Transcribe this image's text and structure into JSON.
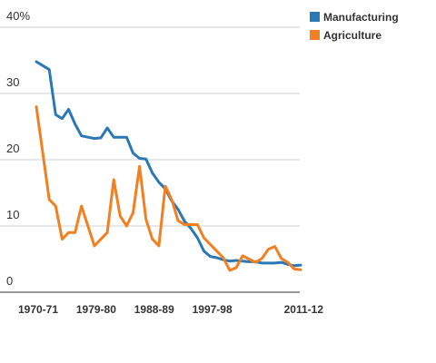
{
  "chart_data": {
    "type": "line",
    "xlabel": "",
    "ylabel": "",
    "ylim": [
      0,
      40
    ],
    "yticks": [
      {
        "value": 0,
        "label": "0"
      },
      {
        "value": 10,
        "label": "10"
      },
      {
        "value": 20,
        "label": "20"
      },
      {
        "value": 30,
        "label": "30"
      },
      {
        "value": 40,
        "label": "40%"
      }
    ],
    "x": [
      "1970-71",
      "1971-72",
      "1972-73",
      "1973-74",
      "1974-75",
      "1975-76",
      "1976-77",
      "1977-78",
      "1978-79",
      "1979-80",
      "1980-81",
      "1981-82",
      "1982-83",
      "1983-84",
      "1984-85",
      "1985-86",
      "1986-87",
      "1987-88",
      "1988-89",
      "1989-90",
      "1990-91",
      "1991-92",
      "1992-93",
      "1993-94",
      "1994-95",
      "1995-96",
      "1996-97",
      "1997-98",
      "1998-99",
      "1999-00",
      "2000-01",
      "2001-02",
      "2002-03",
      "2003-04",
      "2004-05",
      "2005-06",
      "2006-07",
      "2007-08",
      "2008-09",
      "2009-10",
      "2010-11",
      "2011-12"
    ],
    "xtick_labels": [
      "1970-71",
      "1979-80",
      "1988-89",
      "1997-98",
      "2011-12"
    ],
    "grid": "horizontal",
    "legend_position": "top-right",
    "series": [
      {
        "name": "Manufacturing",
        "color": "#2a78b4",
        "values": [
          34.8,
          34.2,
          33.6,
          26.8,
          26.2,
          27.6,
          25.4,
          23.6,
          23.4,
          23.2,
          23.3,
          24.8,
          23.4,
          23.4,
          23.4,
          21.0,
          20.2,
          20.1,
          18.0,
          16.6,
          15.6,
          13.8,
          12.5,
          10.7,
          9.6,
          8.2,
          6.2,
          5.4,
          5.2,
          4.9,
          4.7,
          4.8,
          4.7,
          4.6,
          4.6,
          4.4,
          4.4,
          4.4,
          4.5,
          4.2,
          4.0,
          4.1
        ]
      },
      {
        "name": "Agriculture",
        "color": "#f27f21",
        "values": [
          28.0,
          21.0,
          14.0,
          13.0,
          8.0,
          9.0,
          9.0,
          13.0,
          10.0,
          7.0,
          8.0,
          9.0,
          17.0,
          11.5,
          10.0,
          12.0,
          19.0,
          11.0,
          8.0,
          7.0,
          16.0,
          14.0,
          10.8,
          10.2,
          10.2,
          10.2,
          8.2,
          7.2,
          6.2,
          5.2,
          3.3,
          3.7,
          5.5,
          5.0,
          4.5,
          5.1,
          6.5,
          6.9,
          5.1,
          4.5,
          3.5,
          3.4
        ]
      }
    ]
  }
}
